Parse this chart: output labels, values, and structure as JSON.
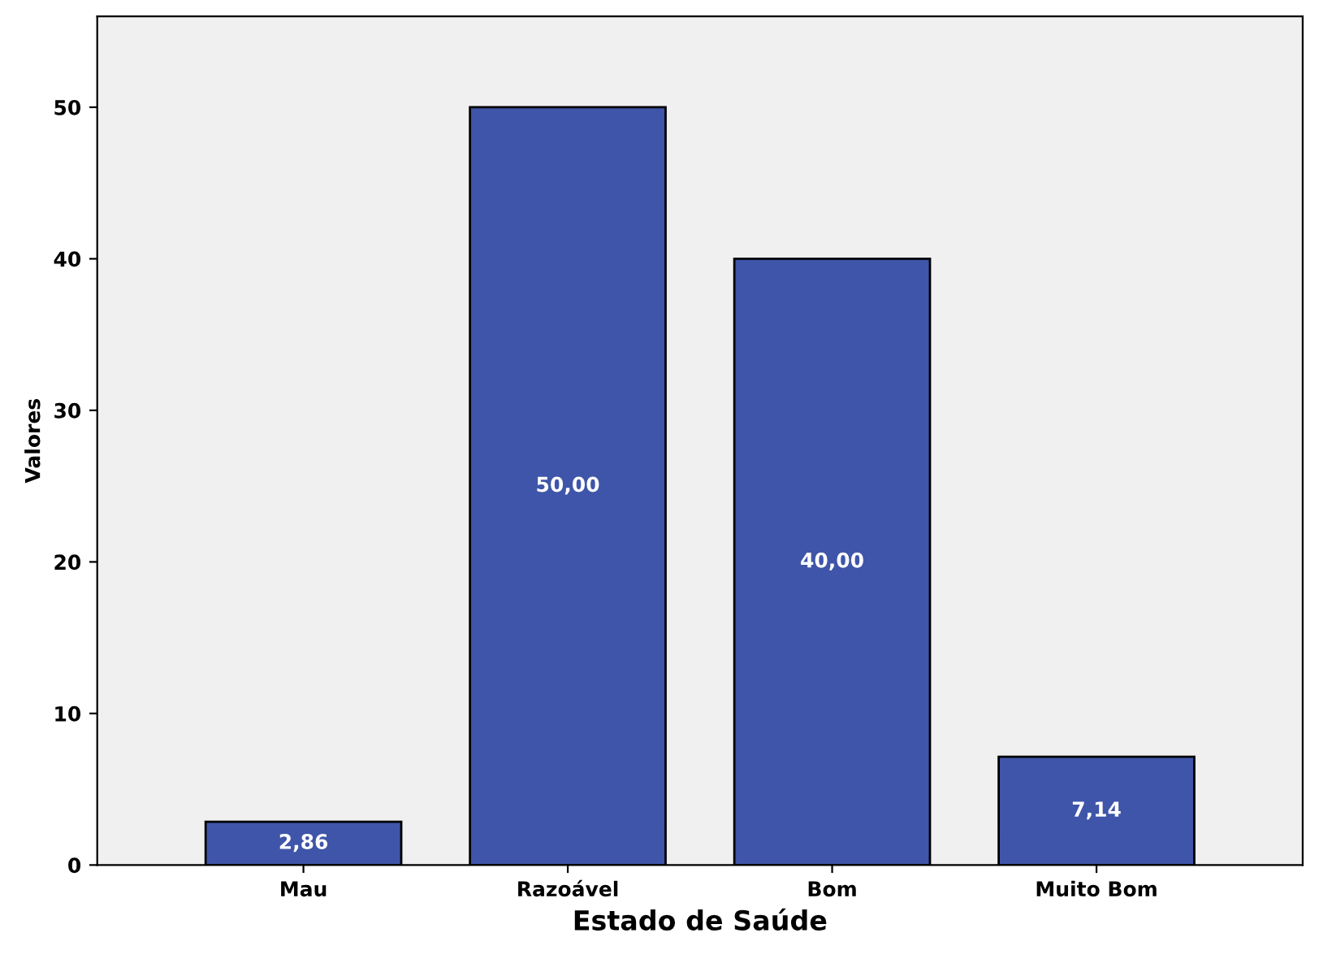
{
  "chart_data": {
    "type": "bar",
    "xlabel": "Estado de Saúde",
    "ylabel": "Valores",
    "categories": [
      "Mau",
      "Razoável",
      "Bom",
      "Muito Bom"
    ],
    "values": [
      2.86,
      50,
      40,
      7.14
    ],
    "value_labels": [
      "2,86",
      "50,00",
      "40,00",
      "7,14"
    ],
    "color": "#3f55a9",
    "ylim": [
      0,
      56
    ],
    "yticks": [
      0,
      10,
      20,
      30,
      40,
      50
    ],
    "grid": false
  }
}
